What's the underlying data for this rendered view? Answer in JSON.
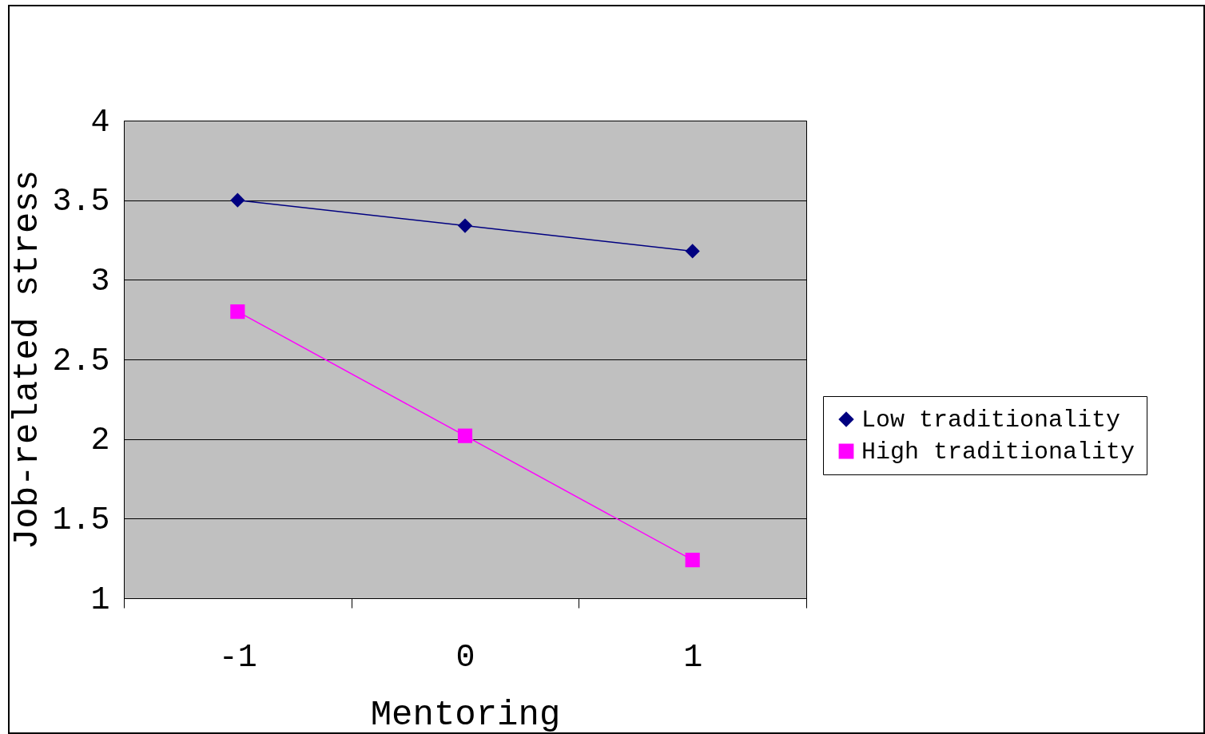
{
  "chart_data": {
    "type": "line",
    "xlabel": "Mentoring",
    "ylabel": "Job-related stress",
    "categories": [
      "-1",
      "0",
      "1"
    ],
    "series": [
      {
        "name": "Low traditionality",
        "color": "#000080",
        "marker": "diamond",
        "values": [
          3.5,
          3.34,
          3.18
        ]
      },
      {
        "name": "High traditionality",
        "color": "#ff00ff",
        "marker": "square",
        "values": [
          2.8,
          2.02,
          1.24
        ]
      }
    ],
    "ylim": [
      1,
      4
    ],
    "yticks": [
      1,
      1.5,
      2,
      2.5,
      3,
      3.5,
      4
    ],
    "grid": "y",
    "legend": "right",
    "line_style": "solid"
  }
}
